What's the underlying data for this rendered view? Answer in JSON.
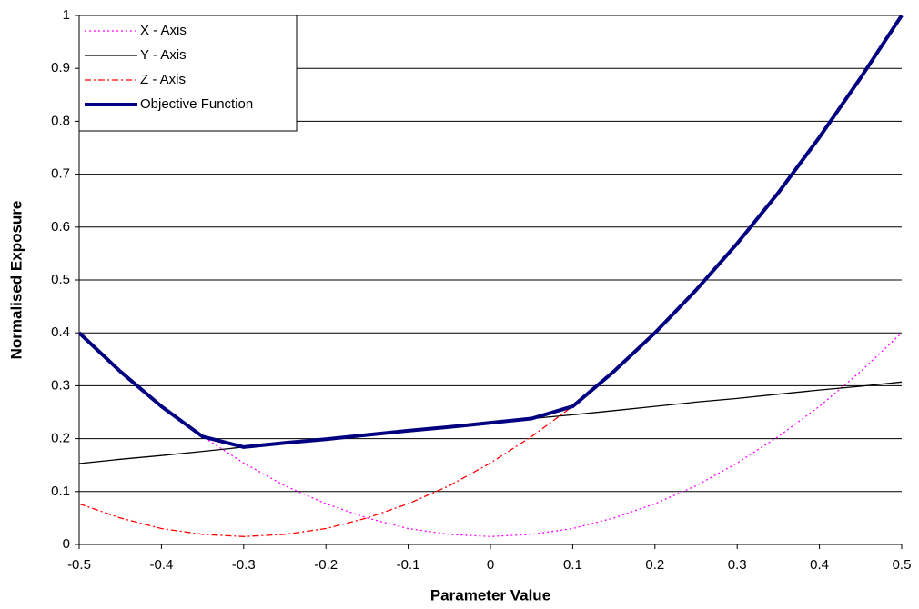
{
  "chart_data": {
    "type": "line",
    "xlabel": "Parameter Value",
    "ylabel": "Normalised Exposure",
    "x": [
      -0.5,
      -0.45,
      -0.4,
      -0.35,
      -0.3,
      -0.25,
      -0.2,
      -0.15,
      -0.1,
      -0.05,
      0,
      0.05,
      0.1,
      0.15,
      0.2,
      0.25,
      0.3,
      0.35,
      0.4,
      0.45,
      0.5
    ],
    "series": [
      {
        "name": "X - Axis",
        "color": "#ff00ff",
        "style": "dotted",
        "width": 1.3,
        "values": [
          0.4,
          0.327,
          0.261,
          0.204,
          0.154,
          0.111,
          0.077,
          0.05,
          0.03,
          0.019,
          0.015,
          0.019,
          0.03,
          0.05,
          0.077,
          0.111,
          0.154,
          0.204,
          0.261,
          0.327,
          0.4
        ]
      },
      {
        "name": "Y - Axis",
        "color": "#000000",
        "style": "solid",
        "width": 1.3,
        "values": [
          0.153,
          0.161,
          0.168,
          0.176,
          0.184,
          0.192,
          0.199,
          0.207,
          0.215,
          0.222,
          0.23,
          0.238,
          0.245,
          0.253,
          0.261,
          0.269,
          0.276,
          0.284,
          0.292,
          0.299,
          0.307
        ]
      },
      {
        "name": "Z - Axis",
        "color": "#ff0000",
        "style": "dashdot",
        "width": 1.3,
        "values": [
          0.077,
          0.05,
          0.03,
          0.019,
          0.015,
          0.019,
          0.03,
          0.05,
          0.077,
          0.111,
          0.154,
          0.204,
          0.261,
          0.327,
          0.4,
          0.481,
          0.569,
          0.665,
          0.77,
          0.882,
          1.0
        ]
      },
      {
        "name": "Objective Function",
        "color": "#000080",
        "style": "solid",
        "width": 4,
        "values": [
          0.4,
          0.327,
          0.261,
          0.204,
          0.184,
          0.192,
          0.199,
          0.207,
          0.215,
          0.222,
          0.23,
          0.238,
          0.261,
          0.327,
          0.4,
          0.481,
          0.569,
          0.665,
          0.77,
          0.882,
          1.0
        ]
      }
    ],
    "xlim": [
      -0.5,
      0.5
    ],
    "xticks": [
      -0.5,
      -0.4,
      -0.3,
      -0.2,
      -0.1,
      0,
      0.1,
      0.2,
      0.3,
      0.4,
      0.5
    ],
    "ylim": [
      0,
      1
    ],
    "yticks": [
      0,
      0.1,
      0.2,
      0.3,
      0.4,
      0.5,
      0.6,
      0.7,
      0.8,
      0.9,
      1
    ],
    "grid": true,
    "legend": "upper left"
  }
}
